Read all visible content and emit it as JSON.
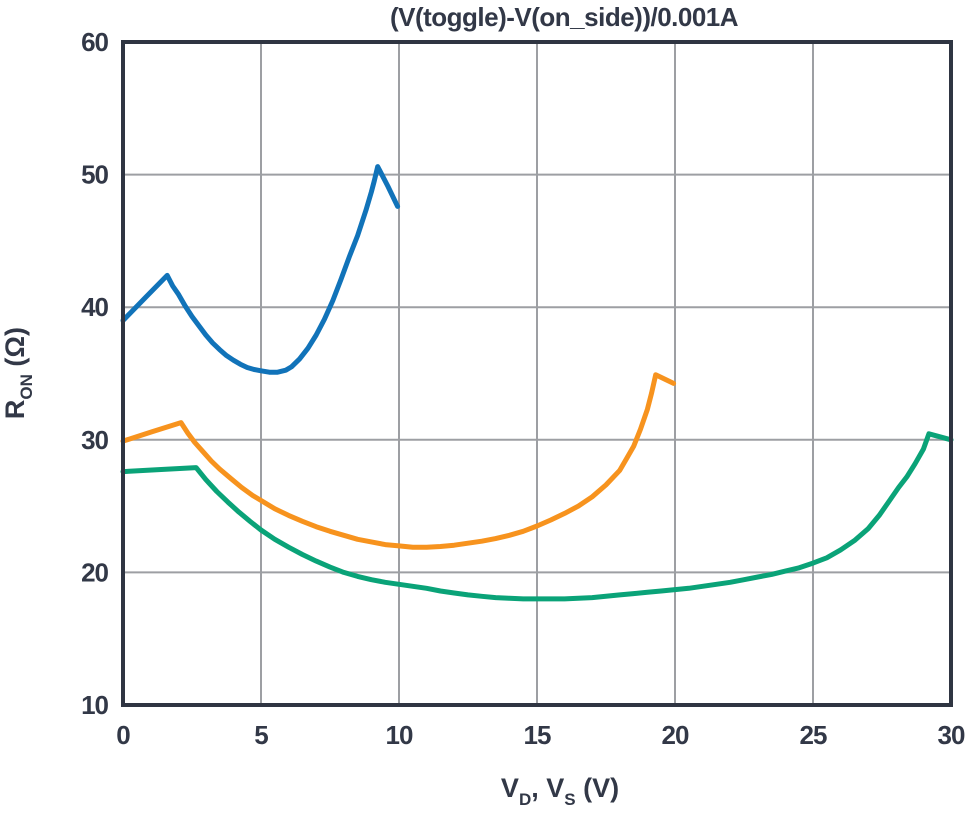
{
  "chart_data": {
    "type": "line",
    "title": "(V(toggle)-V(on_side))/0.001A",
    "xlabel": "VD, VS (V)",
    "ylabel": "RON (Ω)",
    "xlabel_parts": [
      {
        "t": "V"
      },
      {
        "t": "D",
        "sub": true
      },
      {
        "t": ", V"
      },
      {
        "t": "S",
        "sub": true
      },
      {
        "t": " (V)"
      }
    ],
    "ylabel_parts": [
      {
        "t": "R"
      },
      {
        "t": "ON",
        "sub": true
      },
      {
        "t": " (Ω)"
      }
    ],
    "xlim": [
      0,
      30
    ],
    "ylim": [
      10,
      60
    ],
    "xticks": [
      0,
      5,
      10,
      15,
      20,
      25,
      30
    ],
    "yticks": [
      10,
      20,
      30,
      40,
      50,
      60
    ],
    "grid": true,
    "legend": "none",
    "colors": {
      "frame": "#2f3542",
      "text": "#323847",
      "grid": "#9d9fa3",
      "blue": "#1173b9",
      "orange": "#f7931e",
      "green": "#0aa378"
    },
    "series": [
      {
        "name": "blue",
        "color": "#1173b9",
        "points": [
          [
            0,
            39.0
          ],
          [
            0.8,
            40.7
          ],
          [
            1.6,
            42.4
          ],
          [
            1.8,
            41.6
          ],
          [
            2.0,
            41.0
          ],
          [
            2.25,
            40.1
          ],
          [
            2.5,
            39.3
          ],
          [
            2.75,
            38.6
          ],
          [
            3.0,
            37.9
          ],
          [
            3.25,
            37.3
          ],
          [
            3.5,
            36.8
          ],
          [
            3.75,
            36.35
          ],
          [
            4.0,
            36.0
          ],
          [
            4.25,
            35.7
          ],
          [
            4.5,
            35.45
          ],
          [
            4.75,
            35.3
          ],
          [
            5.0,
            35.2
          ],
          [
            5.3,
            35.1
          ],
          [
            5.6,
            35.1
          ],
          [
            5.9,
            35.25
          ],
          [
            6.1,
            35.5
          ],
          [
            6.4,
            36.1
          ],
          [
            6.7,
            36.9
          ],
          [
            7.0,
            37.9
          ],
          [
            7.3,
            39.1
          ],
          [
            7.6,
            40.5
          ],
          [
            7.9,
            42.1
          ],
          [
            8.2,
            43.8
          ],
          [
            8.5,
            45.4
          ],
          [
            8.8,
            47.3
          ],
          [
            9.0,
            48.7
          ],
          [
            9.1,
            49.5
          ],
          [
            9.23,
            50.6
          ],
          [
            9.6,
            49.1
          ],
          [
            9.95,
            47.6
          ]
        ]
      },
      {
        "name": "orange",
        "color": "#f7931e",
        "points": [
          [
            0,
            29.9
          ],
          [
            1.05,
            30.6
          ],
          [
            2.1,
            31.3
          ],
          [
            2.35,
            30.5
          ],
          [
            2.6,
            29.8
          ],
          [
            2.9,
            29.1
          ],
          [
            3.2,
            28.4
          ],
          [
            3.5,
            27.8
          ],
          [
            3.9,
            27.1
          ],
          [
            4.3,
            26.4
          ],
          [
            4.7,
            25.8
          ],
          [
            5.1,
            25.3
          ],
          [
            5.5,
            24.8
          ],
          [
            6.0,
            24.3
          ],
          [
            6.5,
            23.85
          ],
          [
            7.0,
            23.45
          ],
          [
            7.5,
            23.1
          ],
          [
            8.0,
            22.8
          ],
          [
            8.5,
            22.5
          ],
          [
            9.0,
            22.3
          ],
          [
            9.5,
            22.1
          ],
          [
            10.0,
            22.0
          ],
          [
            10.5,
            21.9
          ],
          [
            11.0,
            21.9
          ],
          [
            11.5,
            21.95
          ],
          [
            12.0,
            22.05
          ],
          [
            12.5,
            22.2
          ],
          [
            13.0,
            22.35
          ],
          [
            13.5,
            22.55
          ],
          [
            14.0,
            22.8
          ],
          [
            14.5,
            23.1
          ],
          [
            15.0,
            23.5
          ],
          [
            15.5,
            23.95
          ],
          [
            16.0,
            24.45
          ],
          [
            16.5,
            25.0
          ],
          [
            17.0,
            25.7
          ],
          [
            17.5,
            26.6
          ],
          [
            18.0,
            27.7
          ],
          [
            18.25,
            28.6
          ],
          [
            18.5,
            29.5
          ],
          [
            18.75,
            30.8
          ],
          [
            19.0,
            32.3
          ],
          [
            19.15,
            33.5
          ],
          [
            19.3,
            34.9
          ],
          [
            19.95,
            34.25
          ]
        ]
      },
      {
        "name": "green",
        "color": "#0aa378",
        "points": [
          [
            0,
            27.6
          ],
          [
            1.3,
            27.75
          ],
          [
            2.65,
            27.9
          ],
          [
            3.0,
            27.0
          ],
          [
            3.4,
            26.1
          ],
          [
            3.8,
            25.3
          ],
          [
            4.2,
            24.55
          ],
          [
            4.6,
            23.85
          ],
          [
            5.0,
            23.2
          ],
          [
            5.5,
            22.5
          ],
          [
            6.0,
            21.9
          ],
          [
            6.5,
            21.35
          ],
          [
            7.0,
            20.85
          ],
          [
            7.5,
            20.4
          ],
          [
            8.0,
            20.0
          ],
          [
            8.5,
            19.7
          ],
          [
            9.0,
            19.45
          ],
          [
            9.5,
            19.25
          ],
          [
            10.0,
            19.1
          ],
          [
            10.5,
            18.95
          ],
          [
            11.0,
            18.8
          ],
          [
            11.5,
            18.6
          ],
          [
            12.0,
            18.45
          ],
          [
            12.5,
            18.3
          ],
          [
            13.0,
            18.2
          ],
          [
            13.5,
            18.1
          ],
          [
            14.0,
            18.05
          ],
          [
            14.5,
            18.0
          ],
          [
            15.0,
            18.0
          ],
          [
            15.5,
            18.0
          ],
          [
            16.0,
            18.0
          ],
          [
            16.5,
            18.05
          ],
          [
            17.0,
            18.1
          ],
          [
            17.5,
            18.2
          ],
          [
            18.0,
            18.3
          ],
          [
            18.5,
            18.4
          ],
          [
            19.0,
            18.5
          ],
          [
            19.5,
            18.6
          ],
          [
            20.0,
            18.7
          ],
          [
            20.5,
            18.8
          ],
          [
            21.0,
            18.95
          ],
          [
            21.5,
            19.1
          ],
          [
            22.0,
            19.25
          ],
          [
            22.5,
            19.45
          ],
          [
            23.0,
            19.65
          ],
          [
            23.5,
            19.85
          ],
          [
            24.0,
            20.1
          ],
          [
            24.5,
            20.35
          ],
          [
            25.0,
            20.7
          ],
          [
            25.5,
            21.1
          ],
          [
            26.0,
            21.7
          ],
          [
            26.5,
            22.4
          ],
          [
            27.0,
            23.3
          ],
          [
            27.4,
            24.3
          ],
          [
            27.8,
            25.5
          ],
          [
            28.1,
            26.4
          ],
          [
            28.4,
            27.2
          ],
          [
            28.7,
            28.2
          ],
          [
            29.0,
            29.3
          ],
          [
            29.2,
            30.45
          ],
          [
            30.0,
            30.0
          ]
        ]
      }
    ]
  }
}
